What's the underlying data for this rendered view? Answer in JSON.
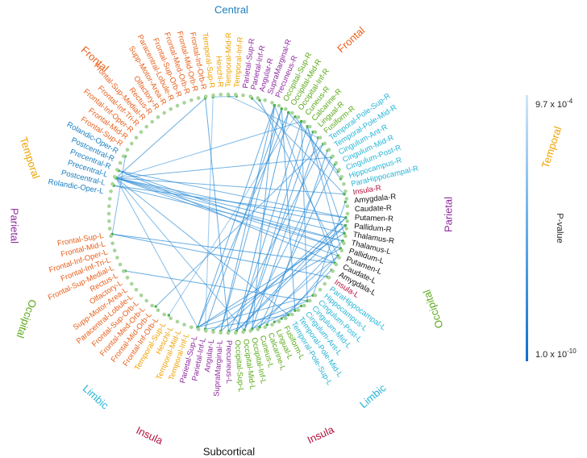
{
  "colors": {
    "Central": "#1a7fc1",
    "Frontal": "#e8601c",
    "Temporal": "#f0a200",
    "Parietal": "#8e2a9e",
    "Occipital": "#5aa817",
    "Limbic": "#24b5d6",
    "Insula": "#b5103c",
    "Subcortical": "#111111",
    "dot": "#a8d59a",
    "edge": "#2a8bd6"
  },
  "groups": [
    {
      "name": "Central",
      "label": "Central"
    },
    {
      "name": "Frontal",
      "label": "Frontal"
    },
    {
      "name": "Frontal",
      "label": "Frontal"
    },
    {
      "name": "Temporal",
      "label": "Temporal"
    },
    {
      "name": "Temporal",
      "label": "Temporal"
    },
    {
      "name": "Parietal",
      "label": "Parietal"
    },
    {
      "name": "Parietal",
      "label": "Parietal"
    },
    {
      "name": "Occipital",
      "label": "Occipital"
    },
    {
      "name": "Occipital",
      "label": "Occipital"
    },
    {
      "name": "Limbic",
      "label": "Limbic"
    },
    {
      "name": "Limbic",
      "label": "Limbic"
    },
    {
      "name": "Insula",
      "label": "Insula"
    },
    {
      "name": "Insula",
      "label": "Insula"
    },
    {
      "name": "Subcortical",
      "label": "Subcortical"
    }
  ],
  "nodes": [
    {
      "label": "Rolandic-Oper-L",
      "group": "Central"
    },
    {
      "label": "Postcentral-L",
      "group": "Central"
    },
    {
      "label": "Precentral-L",
      "group": "Central"
    },
    {
      "label": "Precentral-R",
      "group": "Central"
    },
    {
      "label": "Postcentral-R",
      "group": "Central"
    },
    {
      "label": "Rolandic-Oper-R",
      "group": "Central"
    },
    {
      "label": "Frontal-Sup-R",
      "group": "Frontal"
    },
    {
      "label": "Frontal-Mid-R",
      "group": "Frontal"
    },
    {
      "label": "Frontal-Inf-Oper-R",
      "group": "Frontal"
    },
    {
      "label": "Frontal-Inf-Tri-R",
      "group": "Frontal"
    },
    {
      "label": "Frontal-Sup-Medial-R",
      "group": "Frontal"
    },
    {
      "label": "Rectus-R",
      "group": "Frontal"
    },
    {
      "label": "Olfactory-R",
      "group": "Frontal"
    },
    {
      "label": "Supp-Motor-Area-R",
      "group": "Frontal"
    },
    {
      "label": "Paracentral-Lobule-R",
      "group": "Frontal"
    },
    {
      "label": "Frontal-Sup-Orb-R",
      "group": "Frontal"
    },
    {
      "label": "Frontal-Med-Orb-R",
      "group": "Frontal"
    },
    {
      "label": "Frontal-Mid-Orb-R",
      "group": "Frontal"
    },
    {
      "label": "Frontal-Inf-Orb-R",
      "group": "Frontal"
    },
    {
      "label": "Temporal-Sup-R",
      "group": "Temporal"
    },
    {
      "label": "Heschl-R",
      "group": "Temporal"
    },
    {
      "label": "Temporal-Mid-R",
      "group": "Temporal"
    },
    {
      "label": "Temporal-Inf-R",
      "group": "Temporal"
    },
    {
      "label": "Parietal-Sup-R",
      "group": "Parietal"
    },
    {
      "label": "Parietal-Inf-R",
      "group": "Parietal"
    },
    {
      "label": "Angular-R",
      "group": "Parietal"
    },
    {
      "label": "SupraMarginal-R",
      "group": "Parietal"
    },
    {
      "label": "Precuneus-R",
      "group": "Parietal"
    },
    {
      "label": "Occipital-Sup-R",
      "group": "Occipital"
    },
    {
      "label": "Occipital-Mid-R",
      "group": "Occipital"
    },
    {
      "label": "Occipital-Inf-R",
      "group": "Occipital"
    },
    {
      "label": "Cuneus-R",
      "group": "Occipital"
    },
    {
      "label": "Calcarine-R",
      "group": "Occipital"
    },
    {
      "label": "Lingual-R",
      "group": "Occipital"
    },
    {
      "label": "Fusiform-R",
      "group": "Occipital"
    },
    {
      "label": "Temporal-Pole-Sup-R",
      "group": "Limbic"
    },
    {
      "label": "Temporal-Pole-Mid-R",
      "group": "Limbic"
    },
    {
      "label": "Cingulum-Ant-R",
      "group": "Limbic"
    },
    {
      "label": "Cingulum-Mid-R",
      "group": "Limbic"
    },
    {
      "label": "Cingulum-Post-R",
      "group": "Limbic"
    },
    {
      "label": "Hippocampus-R",
      "group": "Limbic"
    },
    {
      "label": "ParaHippocampal-R",
      "group": "Limbic"
    },
    {
      "label": "Insula-R",
      "group": "Insula"
    },
    {
      "label": "Amygdala-R",
      "group": "Subcortical"
    },
    {
      "label": "Caudate-R",
      "group": "Subcortical"
    },
    {
      "label": "Putamen-R",
      "group": "Subcortical"
    },
    {
      "label": "Pallidum-R",
      "group": "Subcortical"
    },
    {
      "label": "Thalamus-R",
      "group": "Subcortical"
    },
    {
      "label": "Thalamus-L",
      "group": "Subcortical"
    },
    {
      "label": "Pallidum-L",
      "group": "Subcortical"
    },
    {
      "label": "Putamen-L",
      "group": "Subcortical"
    },
    {
      "label": "Caudate-L",
      "group": "Subcortical"
    },
    {
      "label": "Amygdala-L",
      "group": "Subcortical"
    },
    {
      "label": "Insula-L",
      "group": "Insula"
    },
    {
      "label": "ParaHippocampal-L",
      "group": "Limbic"
    },
    {
      "label": "Hippocampus-L",
      "group": "Limbic"
    },
    {
      "label": "Cingulum-Post-L",
      "group": "Limbic"
    },
    {
      "label": "Cingulum-Mid-L",
      "group": "Limbic"
    },
    {
      "label": "Cingulum-Ant-L",
      "group": "Limbic"
    },
    {
      "label": "Temporal-Pole-Mid-L",
      "group": "Limbic"
    },
    {
      "label": "Temporal-Pole-Sup-L",
      "group": "Limbic"
    },
    {
      "label": "Fusiform-L",
      "group": "Occipital"
    },
    {
      "label": "Lingual-L",
      "group": "Occipital"
    },
    {
      "label": "Calcarine-L",
      "group": "Occipital"
    },
    {
      "label": "Cuneus-L",
      "group": "Occipital"
    },
    {
      "label": "Occipital-Inf-L",
      "group": "Occipital"
    },
    {
      "label": "Occipital-Mid-L",
      "group": "Occipital"
    },
    {
      "label": "Occipital-Sup-L",
      "group": "Occipital"
    },
    {
      "label": "Precuneus-L",
      "group": "Parietal"
    },
    {
      "label": "SupraMarginal-L",
      "group": "Parietal"
    },
    {
      "label": "Angular-L",
      "group": "Parietal"
    },
    {
      "label": "Parietal-Inf-L",
      "group": "Parietal"
    },
    {
      "label": "Parietal-Sup-L",
      "group": "Parietal"
    },
    {
      "label": "Temporal-Inf-L",
      "group": "Temporal"
    },
    {
      "label": "Temporal-Mid-L",
      "group": "Temporal"
    },
    {
      "label": "Heschl-L",
      "group": "Temporal"
    },
    {
      "label": "Temporal-Sup-L",
      "group": "Temporal"
    },
    {
      "label": "Frontal-Inf-Orb-L",
      "group": "Frontal"
    },
    {
      "label": "Frontal-Mid-Orb-L",
      "group": "Frontal"
    },
    {
      "label": "Frontal-Med-Orb-L",
      "group": "Frontal"
    },
    {
      "label": "Frontal-Sup-Orb-L",
      "group": "Frontal"
    },
    {
      "label": "Paracentral-Lobule-L",
      "group": "Frontal"
    },
    {
      "label": "Supp-Motor-Area-L",
      "group": "Frontal"
    },
    {
      "label": "Olfactory-L",
      "group": "Frontal"
    },
    {
      "label": "Rectus-L",
      "group": "Frontal"
    },
    {
      "label": "Frontal-Sup-Medial-L",
      "group": "Frontal"
    },
    {
      "label": "Frontal-Inf-Tri-L",
      "group": "Frontal"
    },
    {
      "label": "Frontal-Inf-Oper-L",
      "group": "Frontal"
    },
    {
      "label": "Frontal-Mid-L",
      "group": "Frontal"
    },
    {
      "label": "Frontal-Sup-L",
      "group": "Frontal"
    }
  ],
  "edges": [
    [
      "Precentral-L",
      "Putamen-L",
      0.5
    ],
    [
      "Precentral-L",
      "Pallidum-L",
      0.5
    ],
    [
      "Precentral-L",
      "Thalamus-L",
      0.5
    ],
    [
      "Precentral-L",
      "Thalamus-R",
      0.6
    ],
    [
      "Precentral-L",
      "Pallidum-R",
      0.6
    ],
    [
      "Precentral-L",
      "Cingulum-Ant-R",
      0.5
    ],
    [
      "Precentral-L",
      "Insula-R",
      0.5
    ],
    [
      "Precentral-L",
      "Parietal-Sup-L",
      0.4
    ],
    [
      "Precentral-L",
      "Occipital-Mid-L",
      0.4
    ],
    [
      "Precentral-L",
      "Cuneus-R",
      0.4
    ],
    [
      "Precentral-L",
      "Frontal-Inf-Orb-R",
      0.6
    ],
    [
      "Precentral-L",
      "Temporal-Pole-Sup-L",
      0.5
    ],
    [
      "Precentral-R",
      "Putamen-R",
      0.5
    ],
    [
      "Precentral-R",
      "Pallidum-L",
      0.5
    ],
    [
      "Precentral-R",
      "Caudate-L",
      0.6
    ],
    [
      "Postcentral-L",
      "Thalamus-L",
      0.5
    ],
    [
      "Postcentral-L",
      "Putamen-R",
      0.6
    ],
    [
      "Rolandic-Oper-R",
      "Frontal-Sup-L",
      0.4
    ],
    [
      "Frontal-Sup-L",
      "Insula-L",
      0.6
    ],
    [
      "Frontal-Sup-L",
      "Caudate-L",
      0.6
    ],
    [
      "Frontal-Mid-Orb-L",
      "Temporal-Pole-Sup-R",
      0.5
    ],
    [
      "Rectus-L",
      "Cingulum-Mid-L",
      0.6
    ],
    [
      "Temporal-Sup-L",
      "Occipital-Inf-R",
      0.2
    ],
    [
      "Temporal-Sup-R",
      "Temporal-Inf-R",
      0.3
    ],
    [
      "Temporal-Sup-R",
      "Parietal-Inf-L",
      0.2
    ],
    [
      "Temporal-Mid-R",
      "Fusiform-R",
      0.3
    ],
    [
      "Parietal-Sup-L",
      "Pallidum-L",
      0.6
    ],
    [
      "Parietal-Sup-L",
      "Thalamus-R",
      0.6
    ],
    [
      "Parietal-Sup-L",
      "Precuneus-R",
      0.6
    ],
    [
      "Parietal-Sup-L",
      "Occipital-Mid-R",
      0.6
    ],
    [
      "Parietal-Sup-L",
      "Cingulum-Post-L",
      0.5
    ],
    [
      "Parietal-Inf-L",
      "Temporal-Pole-Sup-L",
      0.5
    ],
    [
      "Parietal-Inf-L",
      "Occipital-Sup-R",
      0.6
    ],
    [
      "Angular-L",
      "Pallidum-R",
      0.6
    ],
    [
      "SupraMarginal-L",
      "Precuneus-R",
      0.6
    ],
    [
      "SupraMarginal-L",
      "Putamen-R",
      0.6
    ],
    [
      "SupraMarginal-L",
      "Occipital-Sup-R",
      0.6
    ],
    [
      "Precuneus-L",
      "Cingulum-Mid-L",
      0.5
    ],
    [
      "Precuneus-L",
      "Temporal-Pole-Sup-R",
      0.6
    ],
    [
      "Occipital-Sup-L",
      "Occipital-Mid-R",
      0.7
    ],
    [
      "Occipital-Sup-L",
      "Cuneus-R",
      0.6
    ],
    [
      "Occipital-Sup-L",
      "Putamen-R",
      0.6
    ],
    [
      "Occipital-Sup-L",
      "Pallidum-R",
      0.6
    ],
    [
      "Occipital-Mid-L",
      "Calcarine-R",
      0.6
    ],
    [
      "Occipital-Mid-L",
      "Lingual-R",
      0.6
    ],
    [
      "Occipital-Mid-L",
      "Cingulum-Ant-R",
      0.5
    ],
    [
      "Occipital-Inf-L",
      "Fusiform-R",
      0.6
    ],
    [
      "Occipital-Inf-L",
      "Putamen-L",
      0.5
    ],
    [
      "Occipital-Inf-L",
      "Cingulum-Ant-L",
      0.5
    ],
    [
      "Cuneus-L",
      "Cingulum-Mid-R",
      0.6
    ],
    [
      "Cuneus-L",
      "Thalamus-L",
      0.5
    ],
    [
      "Calcarine-L",
      "Temporal-Pole-Mid-R",
      0.6
    ],
    [
      "Lingual-L",
      "Temporal-Pole-Sup-L",
      0.5
    ],
    [
      "Fusiform-L",
      "Amygdala-L",
      0.5
    ],
    [
      "Occipital-Sup-R",
      "Temporal-Pole-Mid-L",
      0.6
    ],
    [
      "Occipital-Mid-R",
      "Cingulum-Post-R",
      0.6
    ],
    [
      "Occipital-Inf-R",
      "Hippocampus-R",
      0.5
    ],
    [
      "Precuneus-R",
      "Caudate-L",
      0.5
    ],
    [
      "Precuneus-R",
      "Occipital-Inf-L",
      0.6
    ],
    [
      "Cuneus-R",
      "Cingulum-Mid-L",
      0.5
    ],
    [
      "Calcarine-R",
      "Pallidum-L",
      0.5
    ],
    [
      "Calcarine-R",
      "Thalamus-R",
      0.5
    ],
    [
      "Parietal-Inf-R",
      "Insula-R",
      0.5
    ],
    [
      "Angular-R",
      "Putamen-L",
      0.5
    ],
    [
      "Amygdala-R",
      "Cingulum-Post-L",
      0.5
    ],
    [
      "Putamen-L",
      "Temporal-Pole-Sup-L",
      0.5
    ],
    [
      "Frontal-Inf-Orb-R",
      "Precuneus-L",
      0.6
    ]
  ],
  "legend": {
    "max_label": "9.7 x 10",
    "max_exp": "-4",
    "min_label": "1.0 x 10",
    "min_exp": "-10",
    "title": "P-value"
  }
}
